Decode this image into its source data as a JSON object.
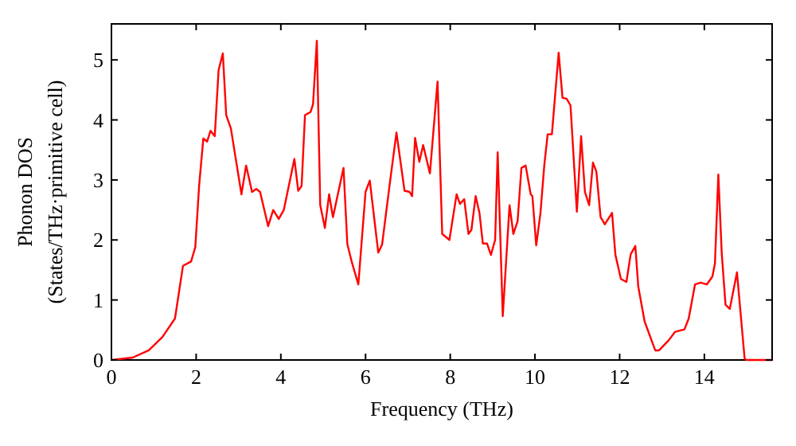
{
  "chart_data": {
    "type": "line",
    "xlabel": "Frequency (THz)",
    "ylabel": "Phonon DOS\n(States/THz·primitive cell)",
    "xlim": [
      0,
      15.6
    ],
    "ylim": [
      0,
      5.6
    ],
    "xticks": [
      0,
      2,
      4,
      6,
      8,
      10,
      12,
      14
    ],
    "yticks": [
      0,
      1,
      2,
      3,
      4,
      5
    ],
    "grid": false,
    "marker": "none",
    "line_style": "solid",
    "series": [
      {
        "color": "#ff0000",
        "x": [
          0,
          0.5,
          0.88,
          1.2,
          1.5,
          1.69,
          1.88,
          1.98,
          2.07,
          2.17,
          2.26,
          2.34,
          2.44,
          2.53,
          2.63,
          2.71,
          2.82,
          3.07,
          3.18,
          3.32,
          3.42,
          3.51,
          3.7,
          3.82,
          3.95,
          4.07,
          4.32,
          4.41,
          4.49,
          4.57,
          4.7,
          4.76,
          4.85,
          4.93,
          5.04,
          5.14,
          5.23,
          5.48,
          5.57,
          5.68,
          5.83,
          6.0,
          6.1,
          6.3,
          6.39,
          6.58,
          6.73,
          6.92,
          7.04,
          7.1,
          7.17,
          7.27,
          7.36,
          7.52,
          7.7,
          7.81,
          7.98,
          8.15,
          8.23,
          8.33,
          8.43,
          8.5,
          8.6,
          8.69,
          8.77,
          8.87,
          8.96,
          9.06,
          9.12,
          9.24,
          9.4,
          9.49,
          9.59,
          9.68,
          9.78,
          9.9,
          9.94,
          10.03,
          10.13,
          10.22,
          10.3,
          10.4,
          10.56,
          10.65,
          10.75,
          10.84,
          10.99,
          11.09,
          11.18,
          11.28,
          11.37,
          11.45,
          11.55,
          11.65,
          11.82,
          11.9,
          12.03,
          12.16,
          12.26,
          12.37,
          12.44,
          12.59,
          12.84,
          12.93,
          13.16,
          13.31,
          13.53,
          13.63,
          13.78,
          13.91,
          14.06,
          14.19,
          14.25,
          14.33,
          14.41,
          14.5,
          14.6,
          14.77,
          14.95,
          14.99,
          15.6
        ],
        "values": [
          0,
          0.04,
          0.16,
          0.38,
          0.69,
          1.57,
          1.64,
          1.88,
          2.9,
          3.69,
          3.64,
          3.82,
          3.73,
          4.83,
          5.11,
          4.08,
          3.86,
          2.76,
          3.24,
          2.8,
          2.85,
          2.8,
          2.23,
          2.5,
          2.35,
          2.5,
          3.35,
          2.82,
          2.9,
          4.08,
          4.13,
          4.26,
          5.32,
          2.58,
          2.2,
          2.76,
          2.38,
          3.2,
          1.93,
          1.62,
          1.26,
          2.8,
          2.99,
          1.79,
          1.92,
          2.98,
          3.79,
          2.82,
          2.8,
          2.73,
          3.7,
          3.3,
          3.58,
          3.11,
          4.64,
          2.1,
          2.0,
          2.76,
          2.6,
          2.68,
          2.1,
          2.17,
          2.73,
          2.45,
          1.94,
          1.94,
          1.75,
          2.0,
          3.46,
          0.73,
          2.58,
          2.1,
          2.31,
          3.2,
          3.24,
          2.76,
          2.73,
          1.91,
          2.45,
          3.24,
          3.76,
          3.76,
          5.12,
          4.37,
          4.35,
          4.24,
          2.47,
          3.73,
          2.8,
          2.58,
          3.29,
          3.14,
          2.38,
          2.26,
          2.45,
          1.75,
          1.35,
          1.3,
          1.76,
          1.9,
          1.22,
          0.64,
          0.16,
          0.16,
          0.33,
          0.47,
          0.51,
          0.69,
          1.26,
          1.29,
          1.26,
          1.39,
          1.61,
          3.09,
          1.78,
          0.92,
          0.85,
          1.46,
          0.03,
          0,
          0
        ]
      }
    ]
  }
}
